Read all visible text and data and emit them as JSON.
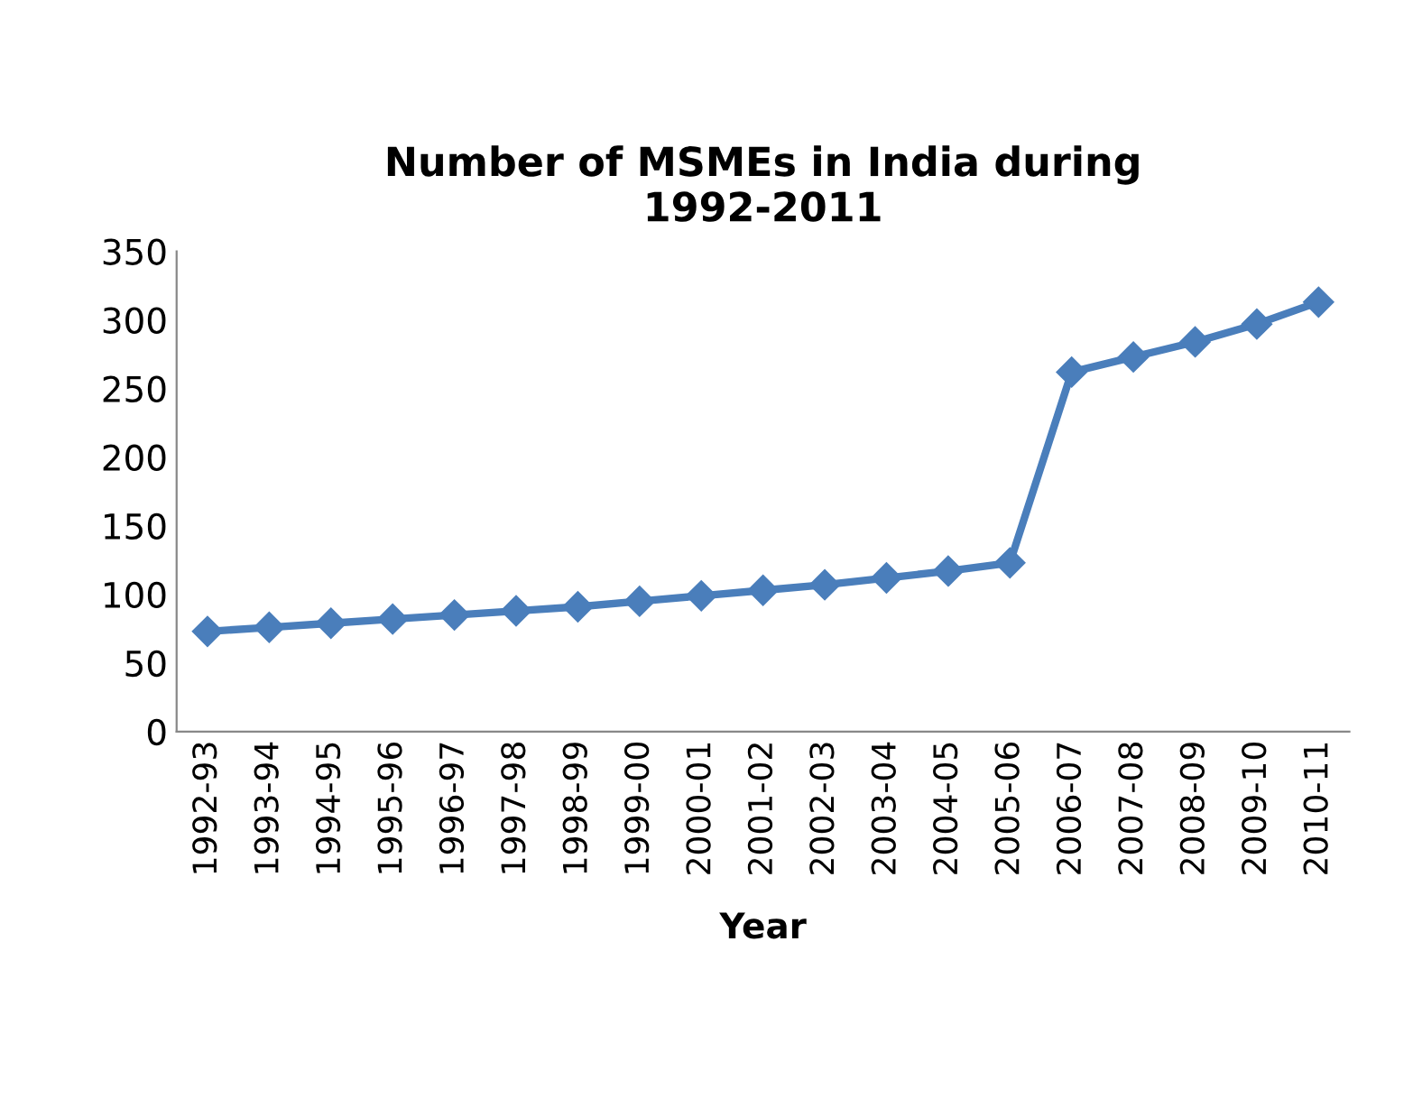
{
  "chart_data": {
    "type": "line",
    "title": "Number of MSMEs in India during\n1992-2011",
    "xlabel": "Year",
    "categories": [
      "1992-93",
      "1993-94",
      "1994-95",
      "1995-96",
      "1996-97",
      "1997-98",
      "1998-99",
      "1999-00",
      "2000-01",
      "2001-02",
      "2002-03",
      "2003-04",
      "2004-05",
      "2005-06",
      "2006-07",
      "2007-08",
      "2008-09",
      "2009-10",
      "2010-11"
    ],
    "series": [
      {
        "color": "#4a7ebb",
        "values": [
          73,
          76,
          79,
          82,
          85,
          88,
          91,
          95,
          99,
          103,
          107,
          112,
          117,
          123,
          262,
          273,
          284,
          297,
          313
        ]
      }
    ],
    "ylim": [
      0,
      350
    ],
    "yticks": [
      0,
      50,
      100,
      150,
      200,
      250,
      300,
      350
    ],
    "grid": false,
    "legend": false,
    "marker": "diamond",
    "line_style": "solid"
  }
}
